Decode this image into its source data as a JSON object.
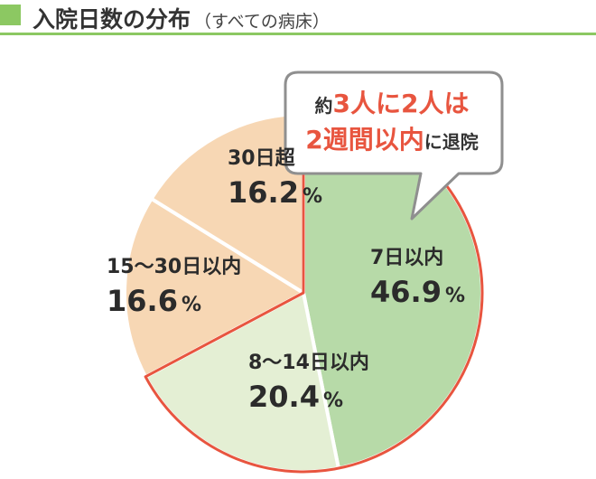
{
  "title": {
    "main": "入院日数の分布",
    "sub": "（すべての病床）"
  },
  "chart_data": {
    "type": "pie",
    "unit": "%",
    "categories": [
      "7日以内",
      "8〜14日以内",
      "15〜30日以内",
      "30日超"
    ],
    "values": [
      46.9,
      20.4,
      16.6,
      16.2
    ],
    "labels": [
      "46.9",
      "20.4",
      "16.6",
      "16.2"
    ],
    "colors": [
      "#b7daa8",
      "#e4efd4",
      "#f7d7b4",
      "#f7d7b4"
    ],
    "highlight": {
      "categories": [
        "7日以内",
        "8〜14日以内"
      ],
      "outline_color": "#e8553f"
    }
  },
  "callout": {
    "line1": {
      "pre": "約",
      "n1": "3",
      "mid": "人に",
      "n2": "2",
      "post": "人は"
    },
    "line2": {
      "n": "2",
      "em": "週間以内",
      "post": "に退院"
    }
  }
}
